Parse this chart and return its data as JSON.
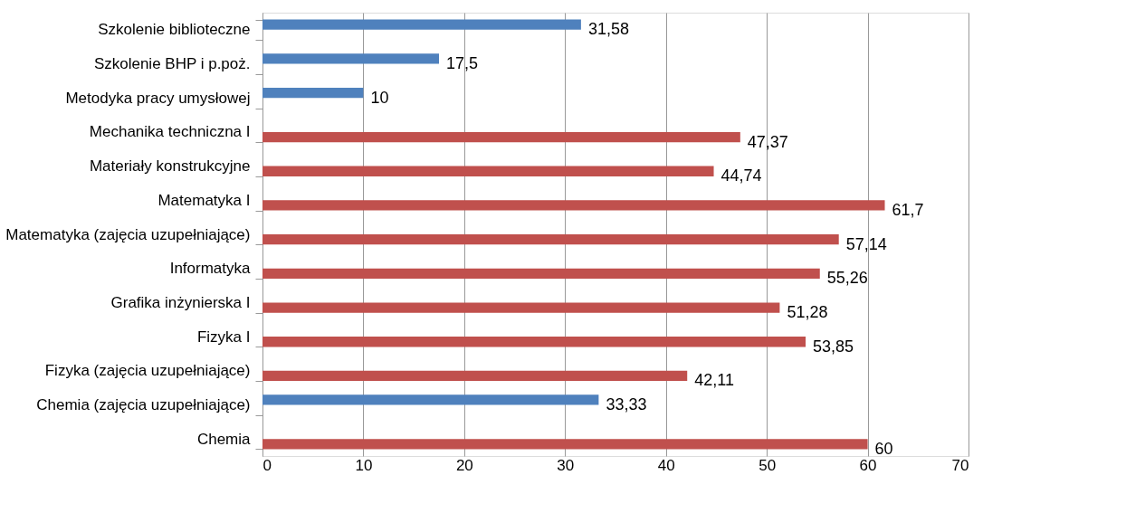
{
  "chart_data": {
    "type": "bar",
    "orientation": "horizontal",
    "categories": [
      "Szkolenie biblioteczne",
      "Szkolenie BHP i p.poż.",
      "Metodyka pracy umysłowej",
      "Mechanika techniczna I",
      "Materiały konstrukcyjne",
      "Matematyka I",
      "Matematyka (zajęcia uzupełniające)",
      "Informatyka",
      "Grafika inżynierska I",
      "Fizyka I",
      "Fizyka (zajęcia uzupełniające)",
      "Chemia (zajęcia uzupełniające)",
      "Chemia"
    ],
    "series": [
      {
        "color": "#4f81bd",
        "values": [
          31.58,
          17.5,
          10,
          null,
          null,
          null,
          null,
          null,
          null,
          null,
          null,
          33.33,
          null
        ],
        "value_labels": [
          "31,58",
          "17,5",
          "10",
          null,
          null,
          null,
          null,
          null,
          null,
          null,
          null,
          "33,33",
          null
        ]
      },
      {
        "color": "#c0504d",
        "values": [
          null,
          null,
          null,
          47.37,
          44.74,
          61.7,
          57.14,
          55.26,
          51.28,
          53.85,
          42.11,
          null,
          60
        ],
        "value_labels": [
          null,
          null,
          null,
          "47,37",
          "44,74",
          "61,7",
          "57,14",
          "55,26",
          "51,28",
          "53,85",
          "42,11",
          null,
          "60"
        ]
      }
    ],
    "xlim": [
      0,
      70
    ],
    "xticks": [
      0,
      10,
      20,
      30,
      40,
      50,
      60,
      70
    ],
    "grid": "x",
    "legend": false
  }
}
